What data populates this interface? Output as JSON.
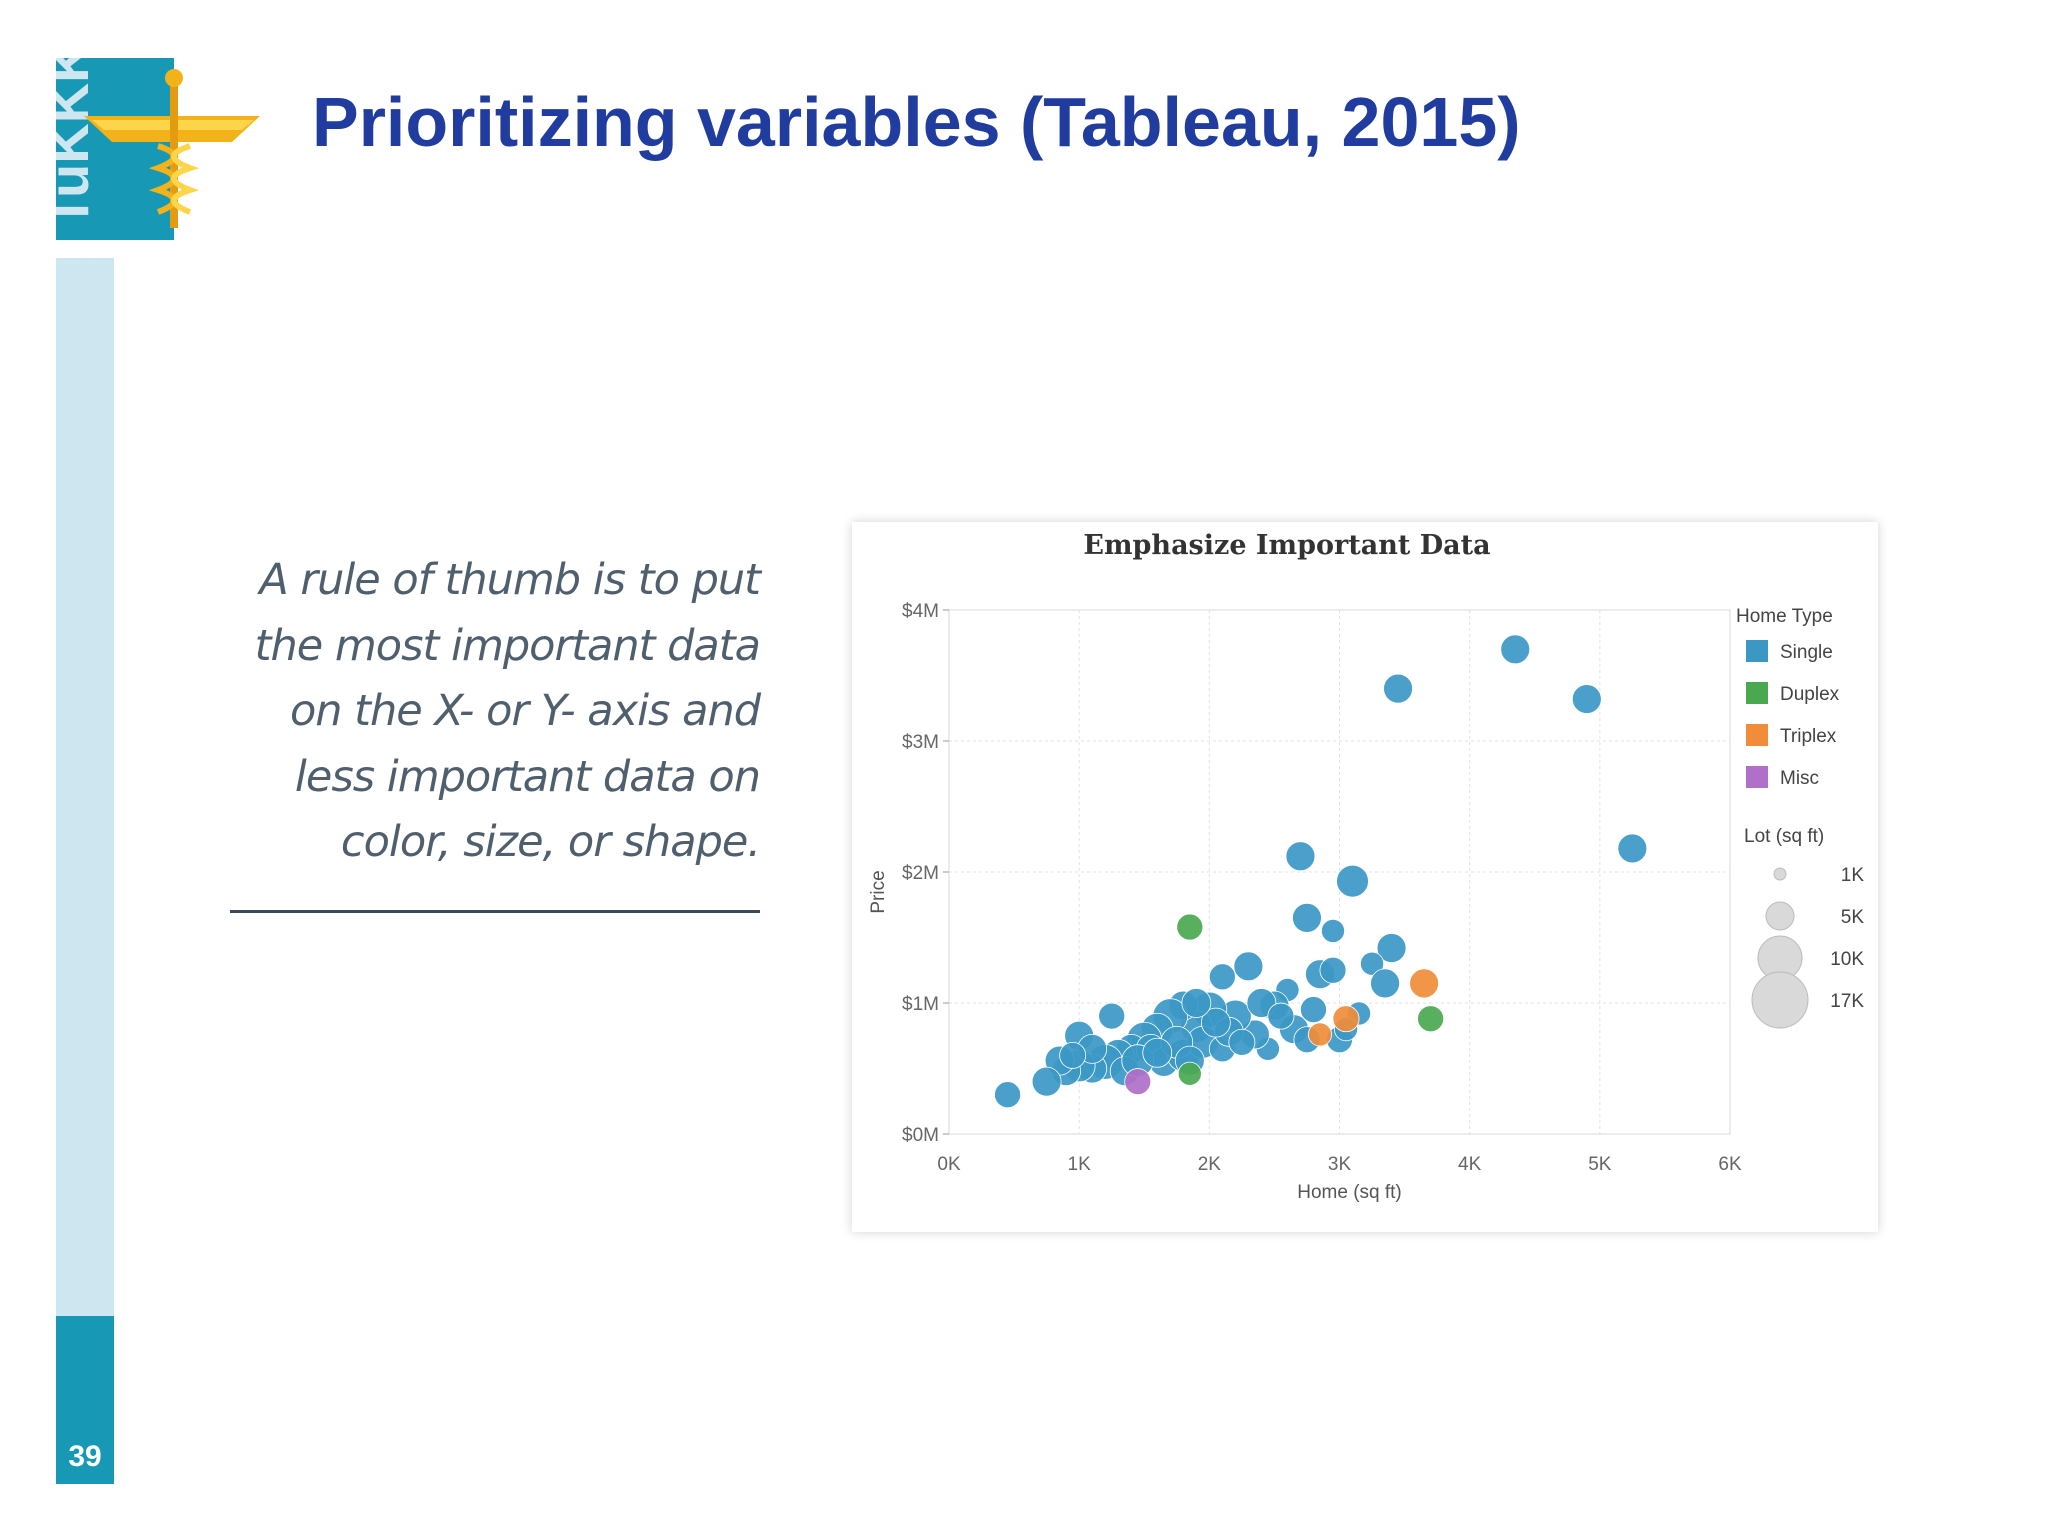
{
  "slide": {
    "title": "Prioritizing variables (Tableau, 2015)",
    "page_number": "39",
    "logo_text": "TuKKK",
    "quote_lines": [
      "A rule of thumb is to put",
      "the most important data",
      "on the X- or Y- axis and",
      "less important data on",
      "color, size, or shape."
    ]
  },
  "colors": {
    "title": "#1f3c9e",
    "sidebar_light": "#cde6ef",
    "sidebar_dark": "#1798b5",
    "single": "#3b98c5",
    "duplex": "#4aa84f",
    "triplex": "#f08c3a",
    "misc": "#b06fc8"
  },
  "chart_data": {
    "type": "scatter",
    "title": "Emphasize Important Data",
    "xlabel": "Home (sq ft)",
    "ylabel": "Price",
    "xlim": [
      0,
      6000
    ],
    "ylim": [
      0,
      4000000
    ],
    "x_ticks": [
      "0K",
      "1K",
      "2K",
      "3K",
      "4K",
      "5K",
      "6K"
    ],
    "y_ticks": [
      "$0M",
      "$1M",
      "$2M",
      "$3M",
      "$4M"
    ],
    "grid": true,
    "legend_position": "right",
    "color_legend": {
      "title": "Home Type",
      "entries": [
        "Single",
        "Duplex",
        "Triplex",
        "Misc"
      ]
    },
    "size_legend": {
      "title": "Lot (sq ft)",
      "entries": [
        "1K",
        "5K",
        "10K",
        "17K"
      ]
    },
    "series": [
      {
        "name": "Single",
        "points": [
          [
            4350,
            3700000,
            10
          ],
          [
            3450,
            3400000,
            10
          ],
          [
            4900,
            3320000,
            10
          ],
          [
            5250,
            2180000,
            10
          ],
          [
            2700,
            2120000,
            10
          ],
          [
            3100,
            1930000,
            11
          ],
          [
            2750,
            1650000,
            10
          ],
          [
            2950,
            1550000,
            8
          ],
          [
            3400,
            1420000,
            10
          ],
          [
            3250,
            1300000,
            8
          ],
          [
            3350,
            1150000,
            10
          ],
          [
            2300,
            1280000,
            10
          ],
          [
            2100,
            1200000,
            9
          ],
          [
            2850,
            1220000,
            10
          ],
          [
            2950,
            1250000,
            9
          ],
          [
            2600,
            1100000,
            8
          ],
          [
            2500,
            980000,
            10
          ],
          [
            2800,
            950000,
            9
          ],
          [
            3150,
            920000,
            8
          ],
          [
            2650,
            800000,
            10
          ],
          [
            3000,
            720000,
            9
          ],
          [
            2450,
            650000,
            8
          ],
          [
            2350,
            760000,
            10
          ],
          [
            2200,
            900000,
            11
          ],
          [
            2000,
            950000,
            12
          ],
          [
            1900,
            820000,
            11
          ],
          [
            1800,
            980000,
            10
          ],
          [
            1700,
            900000,
            12
          ],
          [
            1600,
            800000,
            11
          ],
          [
            1500,
            720000,
            12
          ],
          [
            1400,
            650000,
            10
          ],
          [
            1300,
            600000,
            11
          ],
          [
            1200,
            550000,
            12
          ],
          [
            1100,
            500000,
            10
          ],
          [
            1000,
            520000,
            11
          ],
          [
            900,
            480000,
            10
          ],
          [
            850,
            560000,
            10
          ],
          [
            750,
            400000,
            10
          ],
          [
            450,
            300000,
            9
          ],
          [
            1000,
            750000,
            10
          ],
          [
            1250,
            900000,
            9
          ],
          [
            1550,
            650000,
            10
          ],
          [
            1650,
            550000,
            10
          ],
          [
            1800,
            600000,
            11
          ],
          [
            1950,
            700000,
            11
          ],
          [
            2100,
            650000,
            9
          ],
          [
            2150,
            780000,
            10
          ],
          [
            1350,
            480000,
            10
          ],
          [
            1450,
            560000,
            11
          ],
          [
            1750,
            700000,
            11
          ],
          [
            2050,
            850000,
            10
          ],
          [
            2250,
            700000,
            9
          ],
          [
            1850,
            560000,
            10
          ],
          [
            1600,
            620000,
            10
          ],
          [
            1100,
            650000,
            10
          ],
          [
            950,
            600000,
            9
          ],
          [
            2400,
            1000000,
            10
          ],
          [
            2550,
            900000,
            9
          ],
          [
            2750,
            720000,
            9
          ],
          [
            3050,
            800000,
            8
          ],
          [
            1900,
            1000000,
            10
          ]
        ]
      },
      {
        "name": "Duplex",
        "points": [
          [
            1850,
            1580000,
            9
          ],
          [
            3700,
            880000,
            9
          ],
          [
            1850,
            460000,
            8
          ]
        ]
      },
      {
        "name": "Triplex",
        "points": [
          [
            3650,
            1150000,
            10
          ],
          [
            3050,
            880000,
            9
          ],
          [
            2850,
            760000,
            8
          ]
        ]
      },
      {
        "name": "Misc",
        "points": [
          [
            1450,
            400000,
            9
          ]
        ]
      }
    ]
  }
}
